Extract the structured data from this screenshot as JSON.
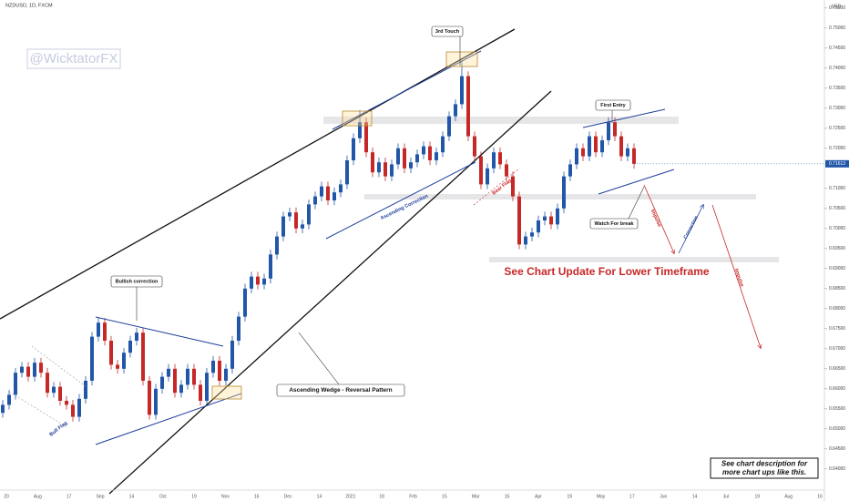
{
  "chart_data": {
    "type": "candlestick",
    "symbol": "NZDUSD, 1D, FXCM",
    "currency": "USD",
    "watermark": "@WicktatorFX",
    "headline": "See Chart Update For Lower Timeframe",
    "note_lines": [
      "See chart description for",
      "more chart ups like this."
    ],
    "annotations": {
      "third_touch": "3rd Touch",
      "first_entry": "First Entry",
      "bullish_correction": "Bullish correction",
      "wedge": "Ascending Wedge - Reversal Pattern",
      "watch_break": "Watch For break",
      "ascending_correction": "Ascending Correction",
      "bear_flag": "Bear Flag",
      "bull_flag": "Bull Flag",
      "impulse_1": "Impulse",
      "correction": "Correction",
      "impulse_2": "Impulse"
    },
    "up_color": "#2156a8",
    "down_color": "#c62828",
    "grid": false,
    "x_labels": [
      "20",
      "Aug",
      "17",
      "Sep",
      "14",
      "Oct",
      "19",
      "Nov",
      "16",
      "Dec",
      "14",
      "2021",
      "18",
      "Feb",
      "15",
      "Mar",
      "15",
      "Apr",
      "19",
      "May",
      "17",
      "Jun",
      "14",
      "Jul",
      "19",
      "Aug",
      "16"
    ],
    "ylim": [
      0.632,
      0.757
    ],
    "yticks": [
      {
        "value": 0.64,
        "label": "0.64000"
      },
      {
        "value": 0.645,
        "label": "0.64500"
      },
      {
        "value": 0.65,
        "label": "0.65000"
      },
      {
        "value": 0.655,
        "label": "0.65500"
      },
      {
        "value": 0.66,
        "label": "0.66000"
      },
      {
        "value": 0.665,
        "label": "0.66500"
      },
      {
        "value": 0.67,
        "label": "0.67000"
      },
      {
        "value": 0.675,
        "label": "0.67500"
      },
      {
        "value": 0.68,
        "label": "0.68000"
      },
      {
        "value": 0.685,
        "label": "0.68500"
      },
      {
        "value": 0.69,
        "label": "0.69000"
      },
      {
        "value": 0.695,
        "label": "0.69500"
      },
      {
        "value": 0.7,
        "label": "0.70000"
      },
      {
        "value": 0.705,
        "label": "0.70500"
      },
      {
        "value": 0.71,
        "label": "0.71000"
      },
      {
        "value": 0.72,
        "label": "0.72000"
      },
      {
        "value": 0.725,
        "label": "0.72500"
      },
      {
        "value": 0.73,
        "label": "0.73000"
      },
      {
        "value": 0.735,
        "label": "0.73500"
      },
      {
        "value": 0.74,
        "label": "0.74000"
      },
      {
        "value": 0.745,
        "label": "0.74500"
      },
      {
        "value": 0.75,
        "label": "0.75000"
      },
      {
        "value": 0.755,
        "label": "0.75500"
      }
    ],
    "last_price_label": "0.71613",
    "open": [
      0.654,
      0.656,
      0.6585,
      0.664,
      0.6655,
      0.663,
      0.6665,
      0.664,
      0.659,
      0.6605,
      0.657,
      0.656,
      0.653,
      0.6575,
      0.662,
      0.673,
      0.6765,
      0.672,
      0.666,
      0.665,
      0.669,
      0.672,
      0.674,
      0.662,
      0.6535,
      0.66,
      0.663,
      0.665,
      0.659,
      0.661,
      0.665,
      0.661,
      0.657,
      0.664,
      0.667,
      0.662,
      0.665,
      0.672,
      0.678,
      0.685,
      0.688,
      0.686,
      0.6875,
      0.6935,
      0.698,
      0.703,
      0.704,
      0.7,
      0.701,
      0.706,
      0.708,
      0.7105,
      0.707,
      0.709,
      0.711,
      0.717,
      0.7225,
      0.7265,
      0.719,
      0.714,
      0.7165,
      0.713,
      0.716,
      0.72,
      0.715,
      0.7165,
      0.7185,
      0.7205,
      0.717,
      0.719,
      0.723,
      0.728,
      0.731,
      0.738,
      0.723,
      0.718,
      0.711,
      0.715,
      0.719,
      0.716,
      0.713,
      0.708,
      0.696,
      0.698,
      0.699,
      0.702,
      0.703,
      0.701,
      0.705,
      0.713,
      0.716,
      0.72,
      0.718,
      0.723,
      0.719,
      0.722,
      0.7265,
      0.723,
      0.718,
      0.72
    ],
    "high": [
      0.6572,
      0.6597,
      0.6652,
      0.6667,
      0.6667,
      0.6677,
      0.6677,
      0.6652,
      0.6617,
      0.6617,
      0.6582,
      0.6572,
      0.6587,
      0.6632,
      0.6742,
      0.6777,
      0.6777,
      0.6732,
      0.6672,
      0.6702,
      0.6732,
      0.6752,
      0.6752,
      0.6632,
      0.6612,
      0.6642,
      0.6662,
      0.6662,
      0.6622,
      0.6662,
      0.6662,
      0.6622,
      0.6652,
      0.6682,
      0.6682,
      0.6662,
      0.6732,
      0.6792,
      0.6862,
      0.6892,
      0.6892,
      0.6887,
      0.6947,
      0.6992,
      0.7042,
      0.7052,
      0.7052,
      0.7022,
      0.7072,
      0.7092,
      0.7117,
      0.7117,
      0.7102,
      0.7122,
      0.7182,
      0.7237,
      0.7295,
      0.7277,
      0.7202,
      0.7177,
      0.7177,
      0.7172,
      0.7212,
      0.7212,
      0.7177,
      0.7197,
      0.7217,
      0.7217,
      0.7202,
      0.7242,
      0.7292,
      0.7322,
      0.742,
      0.7392,
      0.7242,
      0.7192,
      0.7162,
      0.7202,
      0.7202,
      0.7172,
      0.7142,
      0.7092,
      0.6992,
      0.7002,
      0.7032,
      0.7042,
      0.7042,
      0.7062,
      0.7142,
      0.7172,
      0.7212,
      0.7212,
      0.7242,
      0.7242,
      0.7232,
      0.7277,
      0.7277,
      0.7242,
      0.7212,
      0.7212
    ],
    "low": [
      0.6528,
      0.6548,
      0.6573,
      0.6628,
      0.6618,
      0.6618,
      0.6628,
      0.6578,
      0.6578,
      0.6558,
      0.6548,
      0.6518,
      0.6518,
      0.6563,
      0.6608,
      0.6718,
      0.6708,
      0.6648,
      0.6638,
      0.6638,
      0.6678,
      0.6708,
      0.6608,
      0.6523,
      0.6523,
      0.6588,
      0.6618,
      0.6578,
      0.6578,
      0.6598,
      0.6598,
      0.6558,
      0.6558,
      0.6628,
      0.6608,
      0.6608,
      0.6638,
      0.6708,
      0.6768,
      0.6838,
      0.6848,
      0.6848,
      0.6863,
      0.6923,
      0.6968,
      0.7018,
      0.6988,
      0.6988,
      0.6998,
      0.7048,
      0.7068,
      0.7058,
      0.7058,
      0.7078,
      0.7098,
      0.7158,
      0.7213,
      0.7178,
      0.7128,
      0.7128,
      0.7118,
      0.7118,
      0.7148,
      0.7138,
      0.7138,
      0.7153,
      0.7173,
      0.7158,
      0.7158,
      0.7178,
      0.7218,
      0.7268,
      0.7298,
      0.7218,
      0.7168,
      0.7098,
      0.7098,
      0.7138,
      0.7148,
      0.7118,
      0.7068,
      0.6948,
      0.6948,
      0.6968,
      0.6978,
      0.7008,
      0.6998,
      0.6998,
      0.7038,
      0.7118,
      0.7148,
      0.7168,
      0.7168,
      0.7178,
      0.7178,
      0.7208,
      0.7218,
      0.7168,
      0.7168,
      0.7149
    ],
    "close": [
      0.656,
      0.6585,
      0.664,
      0.6655,
      0.663,
      0.6665,
      0.664,
      0.659,
      0.6605,
      0.657,
      0.656,
      0.653,
      0.6575,
      0.662,
      0.673,
      0.6765,
      0.672,
      0.666,
      0.665,
      0.669,
      0.672,
      0.674,
      0.662,
      0.6535,
      0.66,
      0.663,
      0.665,
      0.659,
      0.661,
      0.665,
      0.661,
      0.657,
      0.664,
      0.667,
      0.662,
      0.665,
      0.672,
      0.678,
      0.685,
      0.688,
      0.686,
      0.6875,
      0.6935,
      0.698,
      0.703,
      0.704,
      0.7,
      0.701,
      0.706,
      0.708,
      0.7105,
      0.707,
      0.709,
      0.711,
      0.717,
      0.7225,
      0.7265,
      0.719,
      0.714,
      0.7165,
      0.713,
      0.716,
      0.72,
      0.715,
      0.7165,
      0.7185,
      0.7205,
      0.717,
      0.719,
      0.723,
      0.728,
      0.731,
      0.738,
      0.723,
      0.718,
      0.711,
      0.715,
      0.719,
      0.716,
      0.713,
      0.708,
      0.696,
      0.698,
      0.699,
      0.702,
      0.703,
      0.701,
      0.705,
      0.713,
      0.716,
      0.72,
      0.718,
      0.723,
      0.719,
      0.722,
      0.7265,
      0.723,
      0.718,
      0.72,
      0.71613
    ]
  }
}
